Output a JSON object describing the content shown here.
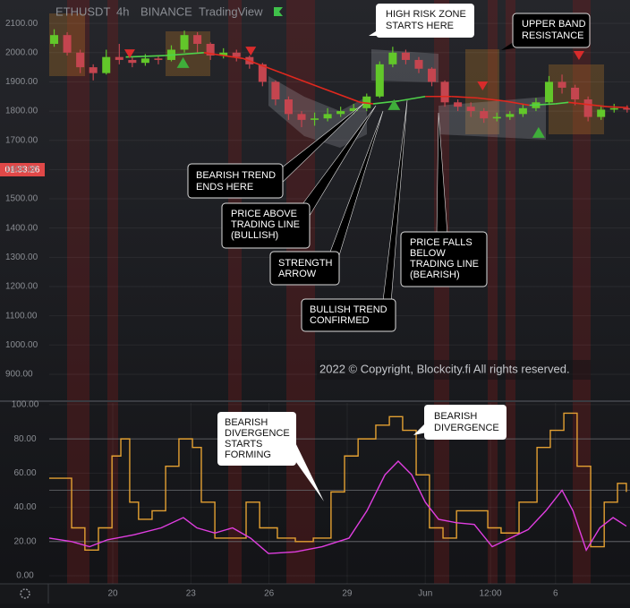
{
  "header": {
    "symbol": "ETHUSDT",
    "interval": "4h",
    "exchange": "BINANCE",
    "source": "TradingView"
  },
  "countdown": "01:33:26",
  "copyright": "2022 © Copyright, Blockcity.fi  All rights reserved.",
  "annotations": [
    {
      "lines": [
        "HIGH RISK ZONE",
        "STARTS HERE"
      ]
    },
    {
      "lines": [
        "UPPER BAND",
        "RESISTANCE"
      ]
    },
    {
      "lines": [
        "BEARISH TREND",
        "ENDS HERE"
      ]
    },
    {
      "lines": [
        "PRICE ABOVE",
        "TRADING LINE",
        "(BULLISH)"
      ]
    },
    {
      "lines": [
        "STRENGTH",
        "ARROW"
      ]
    },
    {
      "lines": [
        "BULLISH TREND",
        "CONFIRMED"
      ]
    },
    {
      "lines": [
        "PRICE FALLS",
        "BELOW",
        "TRADING LINE",
        "(BEARISH)"
      ]
    },
    {
      "lines": [
        "BEARISH",
        "DIVERGENCE",
        "STARTS",
        "FORMING"
      ]
    },
    {
      "lines": [
        "BEARISH",
        "DIVERGENCE"
      ]
    }
  ],
  "chart_data": [
    {
      "type": "candlestick",
      "up_color": "#62c72a",
      "down_color": "#c4454f",
      "grid": true,
      "xlim": [
        17.56,
        39.86
      ],
      "ylim": [
        811,
        2180
      ],
      "yticks": [
        {
          "value": 2100,
          "label": "2100.00"
        },
        {
          "value": 2000,
          "label": "2000.00"
        },
        {
          "value": 1900,
          "label": "1900.00"
        },
        {
          "value": 1800,
          "label": "1800.00"
        },
        {
          "value": 1700,
          "label": "1700.00"
        },
        {
          "value": 1600,
          "label": "1600.00"
        },
        {
          "value": 1500,
          "label": "1500.00"
        },
        {
          "value": 1400,
          "label": "1400.00"
        },
        {
          "value": 1300,
          "label": "1300.00"
        },
        {
          "value": 1200,
          "label": "1200.00"
        },
        {
          "value": 1100,
          "label": "1100.00"
        },
        {
          "value": 1000,
          "label": "1000.00"
        },
        {
          "value": 900,
          "label": "900.00"
        }
      ],
      "x": [
        17.75,
        18.25,
        18.75,
        19.25,
        19.75,
        20.25,
        20.75,
        21.25,
        21.75,
        22.25,
        22.75,
        23.25,
        23.75,
        24.25,
        24.75,
        25.25,
        25.75,
        26.25,
        26.75,
        27.25,
        27.75,
        28.25,
        28.75,
        29.25,
        29.75,
        30.25,
        30.75,
        31.25,
        31.75,
        32.25,
        32.75,
        33.25,
        33.75,
        34.25,
        34.75,
        35.25,
        35.75,
        36.25,
        36.75,
        37.25,
        37.75,
        38.25,
        38.75,
        39.25,
        39.75
      ],
      "open": [
        2030,
        2060,
        2000,
        1950,
        1930,
        1985,
        1975,
        1965,
        1980,
        1975,
        2010,
        2060,
        2030,
        1990,
        2000,
        1985,
        1960,
        1900,
        1840,
        1790,
        1770,
        1775,
        1790,
        1800,
        1810,
        1850,
        1960,
        2000,
        1975,
        1945,
        1900,
        1830,
        1815,
        1800,
        1775,
        1780,
        1790,
        1810,
        1830,
        1900,
        1880,
        1840,
        1780,
        1805,
        1810
      ],
      "high": [
        2080,
        2070,
        2010,
        1960,
        2010,
        2030,
        1985,
        1995,
        1990,
        2025,
        2075,
        2070,
        2035,
        2015,
        2010,
        1990,
        1965,
        1905,
        1850,
        1800,
        1795,
        1810,
        1815,
        1825,
        1860,
        1970,
        2020,
        2010,
        1985,
        1950,
        1905,
        1840,
        1830,
        1810,
        1795,
        1800,
        1825,
        1845,
        1920,
        1925,
        1890,
        1850,
        1820,
        1825,
        1820
      ],
      "low": [
        2020,
        1990,
        1930,
        1905,
        1925,
        1960,
        1950,
        1955,
        1960,
        1970,
        2000,
        2000,
        1975,
        1980,
        1970,
        1945,
        1885,
        1820,
        1770,
        1745,
        1750,
        1765,
        1780,
        1790,
        1800,
        1845,
        1950,
        1960,
        1930,
        1885,
        1815,
        1800,
        1780,
        1760,
        1765,
        1770,
        1780,
        1800,
        1825,
        1860,
        1820,
        1765,
        1770,
        1795,
        1795
      ],
      "close": [
        2060,
        2000,
        1950,
        1930,
        1985,
        1975,
        1965,
        1980,
        1975,
        2010,
        2060,
        2030,
        1990,
        2000,
        1985,
        1960,
        1900,
        1840,
        1790,
        1770,
        1775,
        1790,
        1800,
        1810,
        1850,
        1960,
        2000,
        1975,
        1945,
        1900,
        1830,
        1815,
        1800,
        1775,
        1780,
        1790,
        1810,
        1830,
        1900,
        1880,
        1840,
        1780,
        1805,
        1810,
        1805
      ],
      "trend_line": {
        "up_color": "#4fd14a",
        "down_color": "#e0281e",
        "x": [
          20.5,
          22,
          23.5,
          25,
          26.5,
          28,
          29.5,
          30,
          31,
          32,
          33,
          34,
          35,
          36,
          37,
          37.5,
          38,
          39,
          39.8
        ],
        "values": [
          1985,
          1990,
          2000,
          1980,
          1930,
          1880,
          1830,
          1825,
          1835,
          1850,
          1850,
          1845,
          1835,
          1820,
          1825,
          1830,
          1825,
          1815,
          1812
        ]
      },
      "sell_signals": {
        "color": "#d92b2b",
        "x": [
          20.65,
          25.3,
          34.2,
          37.9
        ],
        "values": [
          1996,
          2005,
          1886,
          1990
        ]
      },
      "buy_signals": {
        "color": "#3fae3a",
        "x": [
          22.7,
          30.8,
          36.35
        ],
        "values": [
          1966,
          1822,
          1727
        ]
      }
    },
    {
      "type": "line",
      "grid": true,
      "xlim": [
        17.56,
        39.86
      ],
      "ylim": [
        -4.7,
        101
      ],
      "xticks": [
        20,
        23,
        26,
        29,
        {
          "value": 32,
          "label": "Jun"
        },
        {
          "value": 34.5,
          "label": "12:00"
        },
        {
          "value": 37,
          "label": "6"
        }
      ],
      "yticks": [
        {
          "value": 100,
          "label": "100.00"
        },
        {
          "value": 80,
          "label": "80.00"
        },
        {
          "value": 60,
          "label": "60.00"
        },
        {
          "value": 40,
          "label": "40.00"
        },
        {
          "value": 20,
          "label": "20.00"
        },
        {
          "value": 0,
          "label": "0.00"
        }
      ],
      "levels": [
        80,
        50,
        20
      ],
      "series": [
        {
          "color": "#e3a032",
          "step": true,
          "x": [
            17.56,
            18.42,
            18.93,
            19.45,
            19.97,
            20.31,
            20.65,
            20.99,
            21.51,
            22.03,
            22.54,
            23.06,
            23.4,
            23.92,
            24.6,
            25.12,
            25.64,
            26.32,
            27.01,
            27.7,
            28.38,
            28.9,
            29.42,
            30.1,
            30.62,
            31.13,
            31.65,
            32.16,
            32.68,
            33.2,
            33.71,
            34.4,
            34.91,
            35.6,
            36.29,
            36.8,
            37.32,
            37.83,
            38.35,
            38.87,
            39.38,
            39.72
          ],
          "values": [
            57,
            28,
            15,
            28,
            70,
            80,
            43,
            33,
            38,
            64,
            80,
            75,
            43,
            22,
            22,
            43,
            28,
            22,
            20,
            22,
            49,
            70,
            80,
            88,
            93,
            85,
            59,
            28,
            22,
            38,
            38,
            28,
            25,
            43,
            75,
            85,
            95,
            64,
            17,
            43,
            54,
            49
          ]
        },
        {
          "color": "#e03ee0",
          "step": false,
          "x": [
            17.56,
            18.42,
            19.11,
            19.79,
            20.82,
            21.86,
            22.71,
            23.23,
            23.92,
            24.6,
            25.29,
            25.98,
            27.01,
            28.04,
            29.07,
            29.76,
            30.45,
            30.96,
            31.48,
            32.0,
            32.51,
            33.2,
            33.88,
            34.57,
            35.26,
            35.95,
            36.63,
            37.25,
            37.67,
            38.18,
            38.7,
            39.21,
            39.72
          ],
          "values": [
            22,
            20,
            17,
            21,
            24,
            28,
            34,
            28,
            25,
            28,
            22,
            13,
            14,
            17,
            22,
            38,
            59,
            67,
            59,
            43,
            33,
            31,
            30,
            17,
            22,
            27,
            38,
            50,
            38,
            15,
            28,
            34,
            29
          ]
        }
      ]
    }
  ]
}
